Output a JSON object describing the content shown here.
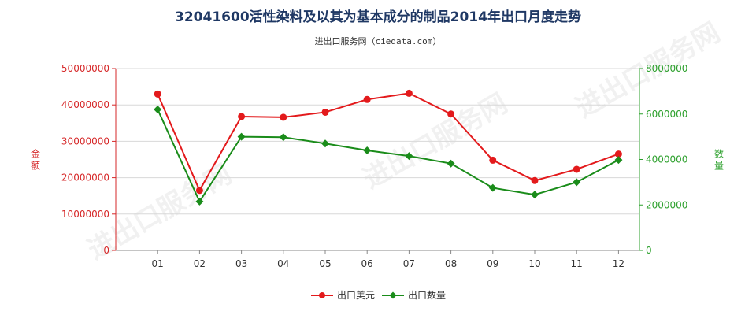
{
  "colors": {
    "left_axis": "#d62728",
    "right_axis": "#2ca02c",
    "series_usd": "#e31a1c",
    "series_qty": "#1a8c1a",
    "grid": "#d8d8d8",
    "title": "#1f3864"
  },
  "watermark": "进出口服务网",
  "chart_data": {
    "type": "line",
    "title": "32041600活性染料及以其为基本成分的制品2014年出口月度走势",
    "subtitle": "进出口服务网（ciedata.com）",
    "categories": [
      "01",
      "02",
      "03",
      "04",
      "05",
      "06",
      "07",
      "08",
      "09",
      "10",
      "11",
      "12"
    ],
    "y_left": {
      "label": "金额",
      "min": 0,
      "max": 50000000,
      "ticks": [
        "0",
        "10000000",
        "20000000",
        "30000000",
        "40000000",
        "50000000"
      ]
    },
    "y_right": {
      "label": "数量",
      "min": 0,
      "max": 8000000,
      "ticks": [
        "0",
        "2000000",
        "4000000",
        "6000000",
        "8000000"
      ]
    },
    "grid": "horizontal",
    "legend_position": "bottom-center",
    "series": [
      {
        "name": "出口美元",
        "axis": "left",
        "marker": "circle",
        "values": [
          43000000,
          16500000,
          36800000,
          36600000,
          38000000,
          41500000,
          43200000,
          37500000,
          24800000,
          19200000,
          22300000,
          26500000
        ]
      },
      {
        "name": "出口数量",
        "axis": "right",
        "marker": "diamond",
        "values": [
          6200000,
          2150000,
          5000000,
          4980000,
          4700000,
          4400000,
          4150000,
          3820000,
          2750000,
          2450000,
          3000000,
          3980000
        ]
      }
    ]
  }
}
